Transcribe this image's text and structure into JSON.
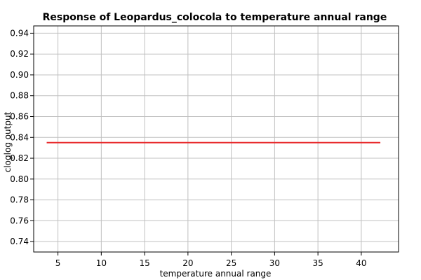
{
  "chart_data": {
    "type": "line",
    "title": "Response of Leopardus_colocola to temperature annual range",
    "xlabel": "temperature annual range",
    "ylabel": "cloglog output",
    "xlim": [
      2.2,
      44.3
    ],
    "ylim": [
      0.73,
      0.947
    ],
    "xticks": [
      5,
      10,
      15,
      20,
      25,
      30,
      35,
      40
    ],
    "yticks": [
      0.74,
      0.76,
      0.78,
      0.8,
      0.82,
      0.84,
      0.86,
      0.88,
      0.9,
      0.92,
      0.94
    ],
    "xtick_labels": [
      "5",
      "10",
      "15",
      "20",
      "25",
      "30",
      "35",
      "40"
    ],
    "ytick_labels": [
      "0.74",
      "0.76",
      "0.78",
      "0.80",
      "0.82",
      "0.84",
      "0.86",
      "0.88",
      "0.90",
      "0.92",
      "0.94"
    ],
    "grid": true,
    "series": [
      {
        "x": [
          3.7,
          42.2
        ],
        "y": [
          0.835,
          0.835
        ],
        "color": "#e8292b"
      }
    ]
  }
}
